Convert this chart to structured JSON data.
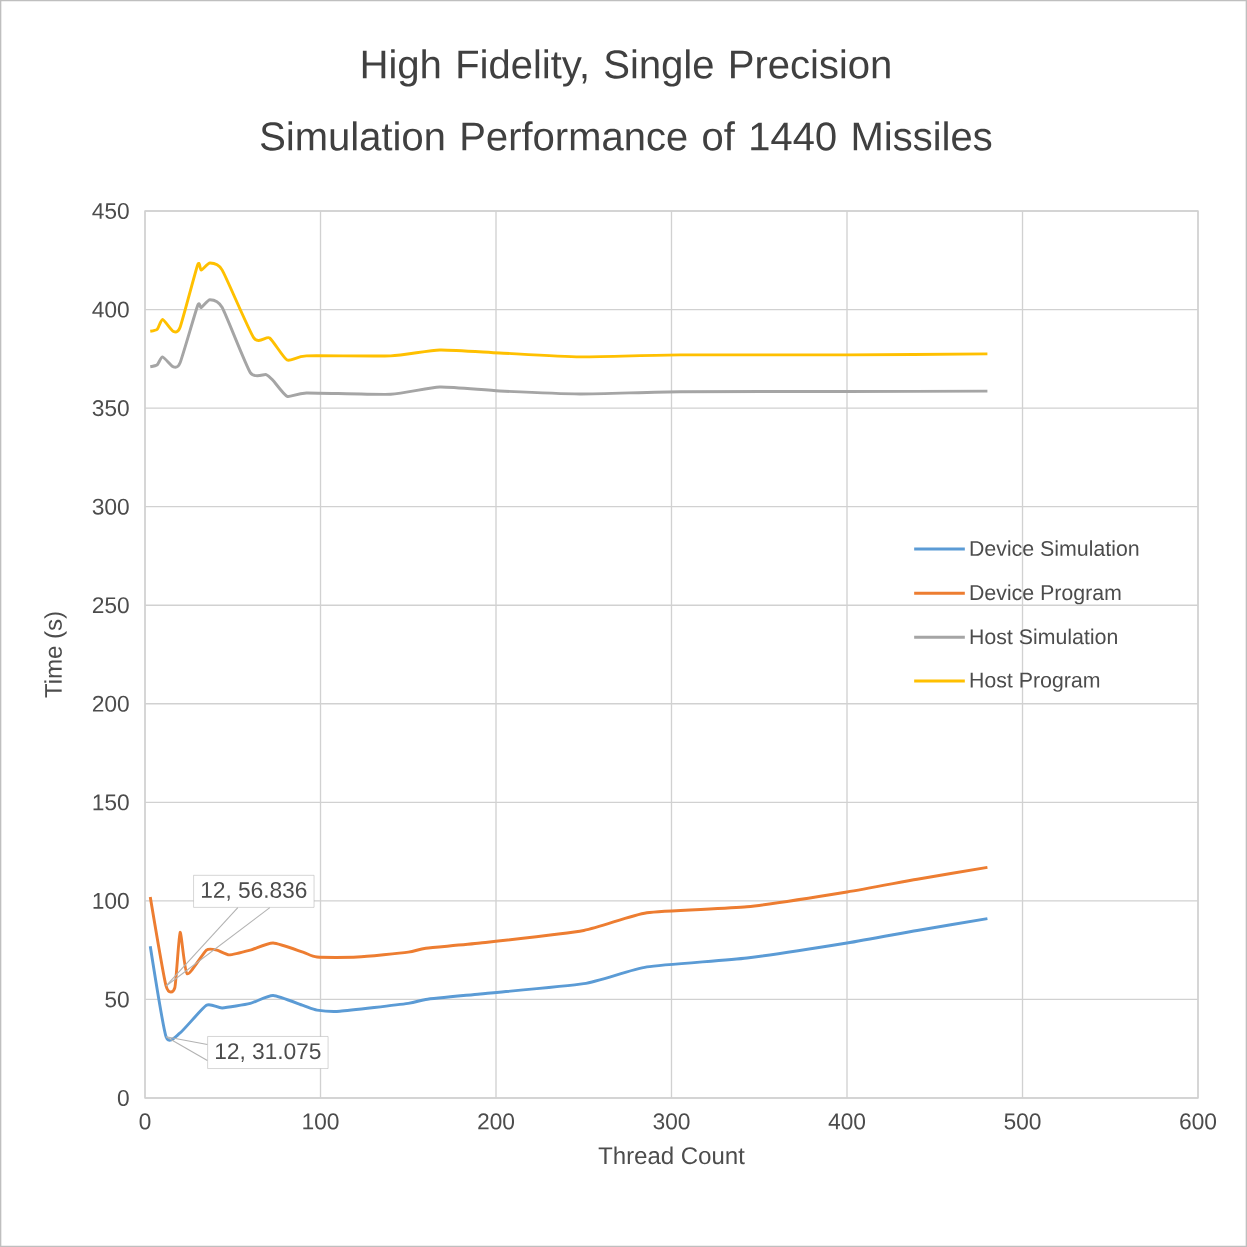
{
  "chart_data": {
    "type": "line",
    "title": "High Fidelity, Single Precision Simulation Performance of 1440 Missiles",
    "xlabel": "Thread Count",
    "ylabel": "Time (s)",
    "xlim": [
      0,
      600
    ],
    "xticks": [
      0,
      100,
      200,
      300,
      400,
      500,
      600
    ],
    "ylim": [
      0,
      450
    ],
    "yticks": [
      0,
      50,
      100,
      150,
      200,
      250,
      300,
      350,
      400,
      450
    ],
    "grid": true,
    "legend": "right",
    "marker": "none",
    "line_style": "solid",
    "annotations": [
      {
        "text": "12, 56.836",
        "x": 12,
        "y": 56.836
      },
      {
        "text": "12, 31.075",
        "x": 12,
        "y": 31.075
      }
    ],
    "series": [
      {
        "name": "Device Simulation",
        "color": "#5b9bd5",
        "x": [
          3,
          12,
          20,
          35,
          44,
          60,
          73,
          90,
          98,
          111,
          150,
          160,
          191,
          250,
          286,
          343,
          400,
          440,
          480
        ],
        "values": [
          77,
          31.075,
          33,
          47,
          45.7,
          48,
          52,
          47,
          44.6,
          44,
          48,
          50,
          52.8,
          58,
          66.5,
          71,
          78.6,
          85,
          91
        ]
      },
      {
        "name": "Device Program",
        "color": "#ed7d31",
        "x": [
          3,
          12,
          17,
          20,
          24,
          35,
          41,
          48,
          60,
          73,
          90,
          98,
          121,
          150,
          160,
          191,
          250,
          286,
          343,
          400,
          440,
          480
        ],
        "values": [
          102,
          56.836,
          56,
          84,
          63,
          75,
          75,
          72.6,
          75,
          78.6,
          74,
          71.5,
          71.5,
          74,
          76,
          78.6,
          85,
          94,
          97,
          104.5,
          111,
          117
        ]
      },
      {
        "name": "Host Simulation",
        "color": "#a5a5a5",
        "x": [
          3,
          7,
          10,
          16,
          20,
          30,
          32,
          37,
          44,
          60,
          69,
          73,
          81,
          92,
          140,
          168,
          202,
          248,
          305,
          400,
          480
        ],
        "values": [
          371,
          372,
          376,
          371,
          373,
          402,
          401,
          405,
          401,
          368,
          367,
          364,
          356,
          357.7,
          357,
          360.7,
          358.7,
          357.2,
          358.3,
          358.4,
          358.6
        ]
      },
      {
        "name": "Host Program",
        "color": "#ffc000",
        "x": [
          3,
          7,
          10,
          16,
          20,
          30,
          32,
          37,
          44,
          62,
          71,
          81,
          92,
          140,
          168,
          202,
          248,
          305,
          400,
          480
        ],
        "values": [
          389,
          390,
          395,
          389,
          391,
          422.6,
          420,
          423.6,
          420,
          385.6,
          385.6,
          374.4,
          376.5,
          376.5,
          379.5,
          378,
          376,
          377,
          377,
          377.5
        ]
      }
    ]
  }
}
